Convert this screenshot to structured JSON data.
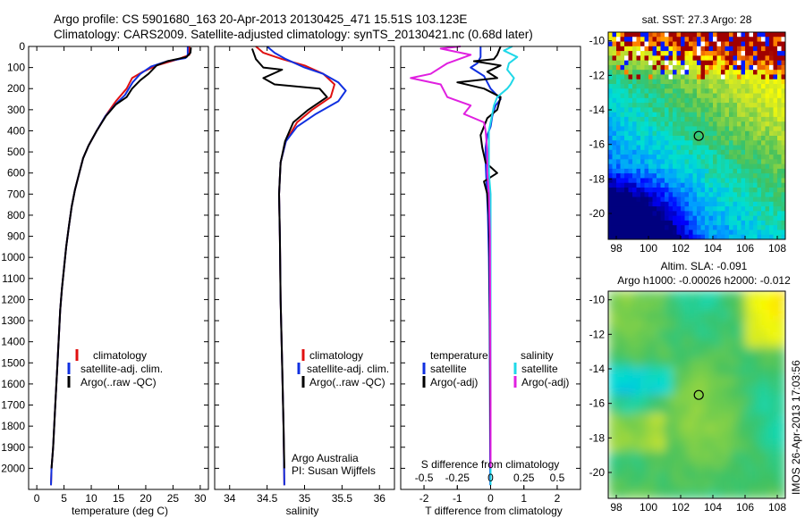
{
  "header": {
    "title_line1": "Argo profile: CS 5901680_163 20-Apr-2013 20130425_471 15.51S 103.123E",
    "title_line2": "Climatology: CARS2009. Satellite-adjusted climatology: synTS_20130421.nc (0.68d later)"
  },
  "colors": {
    "red": "#e01010",
    "blue": "#1030e0",
    "black": "#000000",
    "cyan": "#20d8e8",
    "magenta": "#e020e0"
  },
  "chart_data": [
    {
      "id": "temperature",
      "type": "line",
      "xlabel": "temperature (deg C)",
      "ylabel": "",
      "xlim": [
        -1.5,
        31.5
      ],
      "ylim": [
        2100,
        0
      ],
      "xticks": [
        0,
        5,
        10,
        15,
        20,
        25,
        30
      ],
      "yticks": [
        0,
        100,
        200,
        300,
        400,
        500,
        600,
        700,
        800,
        900,
        1000,
        1100,
        1200,
        1300,
        1400,
        1500,
        1600,
        1700,
        1800,
        1900,
        2000
      ],
      "legend": {
        "position": "lower-center",
        "entries": [
          "climatology",
          "satellite-adj. clim.",
          "Argo(..raw -QC)"
        ]
      },
      "series": [
        {
          "name": "climatology",
          "color": "red",
          "points": [
            [
              28,
              0
            ],
            [
              28,
              40
            ],
            [
              26,
              60
            ],
            [
              22,
              90
            ],
            [
              19.5,
              120
            ],
            [
              17.5,
              150
            ],
            [
              16.5,
              200
            ],
            [
              14.5,
              260
            ],
            [
              12.6,
              330
            ],
            [
              11,
              400
            ],
            [
              9.5,
              470
            ],
            [
              8.5,
              530
            ],
            [
              7.8,
              600
            ],
            [
              7,
              680
            ],
            [
              6.4,
              760
            ],
            [
              5.9,
              850
            ],
            [
              5.4,
              950
            ],
            [
              5,
              1050
            ],
            [
              4.6,
              1150
            ],
            [
              4.3,
              1250
            ],
            [
              4.1,
              1350
            ],
            [
              3.8,
              1500
            ],
            [
              3.4,
              1700
            ],
            [
              3,
              1900
            ],
            [
              2.7,
              2000
            ],
            [
              2.6,
              2080
            ]
          ]
        },
        {
          "name": "satellite-adj. clim.",
          "color": "blue",
          "points": [
            [
              27.7,
              0
            ],
            [
              27.7,
              40
            ],
            [
              27.3,
              55
            ],
            [
              24,
              70
            ],
            [
              21,
              95
            ],
            [
              19,
              130
            ],
            [
              17.6,
              170
            ],
            [
              16.2,
              230
            ],
            [
              14.6,
              270
            ],
            [
              12.6,
              330
            ],
            [
              11,
              400
            ],
            [
              9.5,
              470
            ],
            [
              8.5,
              530
            ],
            [
              7.8,
              600
            ],
            [
              7,
              680
            ],
            [
              6.4,
              760
            ],
            [
              5.9,
              850
            ],
            [
              5.4,
              950
            ],
            [
              5,
              1050
            ],
            [
              4.6,
              1150
            ],
            [
              4.3,
              1250
            ],
            [
              4.1,
              1350
            ],
            [
              3.8,
              1500
            ],
            [
              3.4,
              1700
            ],
            [
              3,
              1900
            ],
            [
              2.7,
              2000
            ],
            [
              2.6,
              2080
            ]
          ]
        },
        {
          "name": "Argo(..raw -QC)",
          "color": "black",
          "points": [
            [
              28.3,
              5
            ],
            [
              28.2,
              30
            ],
            [
              27.5,
              50
            ],
            [
              24,
              70
            ],
            [
              22,
              90
            ],
            [
              20.5,
              130
            ],
            [
              19,
              160
            ],
            [
              17.5,
              200
            ],
            [
              16.5,
              240
            ],
            [
              14.5,
              275
            ],
            [
              12.7,
              330
            ],
            [
              11,
              400
            ],
            [
              9.5,
              470
            ],
            [
              8.5,
              530
            ],
            [
              7.8,
              600
            ],
            [
              7,
              680
            ],
            [
              6.4,
              760
            ],
            [
              5.9,
              850
            ],
            [
              5.4,
              950
            ],
            [
              5,
              1050
            ],
            [
              4.6,
              1150
            ],
            [
              4.3,
              1250
            ],
            [
              4.1,
              1350
            ],
            [
              3.8,
              1500
            ],
            [
              3.4,
              1700
            ],
            [
              3,
              1900
            ],
            [
              2.7,
              2000
            ]
          ]
        }
      ]
    },
    {
      "id": "salinity",
      "type": "line",
      "xlabel": "salinity",
      "xlim": [
        33.8,
        36.2
      ],
      "ylim": [
        2100,
        0
      ],
      "xticks": [
        34,
        34.5,
        35,
        35.5,
        36
      ],
      "legend": {
        "position": "lower-center",
        "entries": [
          "climatology",
          "satellite-adj. clim.",
          "Argo(..raw -QC)"
        ]
      },
      "annotations": [
        "Argo Australia",
        "PI: Susan Wijffels"
      ],
      "series": [
        {
          "name": "climatology",
          "color": "red",
          "points": [
            [
              34.35,
              0
            ],
            [
              34.45,
              30
            ],
            [
              34.7,
              60
            ],
            [
              35,
              90
            ],
            [
              35.25,
              130
            ],
            [
              35.4,
              180
            ],
            [
              35.35,
              240
            ],
            [
              35.1,
              300
            ],
            [
              34.9,
              360
            ],
            [
              34.75,
              450
            ],
            [
              34.68,
              550
            ],
            [
              34.66,
              700
            ],
            [
              34.67,
              900
            ],
            [
              34.68,
              1200
            ],
            [
              34.7,
              1500
            ],
            [
              34.72,
              1800
            ],
            [
              34.73,
              2080
            ]
          ]
        },
        {
          "name": "satellite-adj. clim.",
          "color": "blue",
          "points": [
            [
              34.5,
              0
            ],
            [
              34.6,
              30
            ],
            [
              34.75,
              60
            ],
            [
              35,
              100
            ],
            [
              35.25,
              130
            ],
            [
              35.45,
              170
            ],
            [
              35.55,
              210
            ],
            [
              35.45,
              260
            ],
            [
              35.15,
              320
            ],
            [
              34.9,
              380
            ],
            [
              34.75,
              450
            ],
            [
              34.68,
              550
            ],
            [
              34.66,
              700
            ],
            [
              34.67,
              900
            ],
            [
              34.68,
              1200
            ],
            [
              34.7,
              1500
            ],
            [
              34.72,
              1800
            ],
            [
              34.73,
              2080
            ]
          ]
        },
        {
          "name": "Argo(..raw -QC)",
          "color": "black",
          "points": [
            [
              34.3,
              10
            ],
            [
              34.35,
              60
            ],
            [
              34.45,
              100
            ],
            [
              34.7,
              110
            ],
            [
              34.45,
              150
            ],
            [
              34.6,
              180
            ],
            [
              35.2,
              200
            ],
            [
              35.3,
              240
            ],
            [
              35.05,
              300
            ],
            [
              34.85,
              360
            ],
            [
              34.74,
              450
            ],
            [
              34.68,
              550
            ],
            [
              34.66,
              700
            ],
            [
              34.67,
              900
            ],
            [
              34.68,
              1200
            ],
            [
              34.7,
              1500
            ],
            [
              34.72,
              1800
            ],
            [
              34.73,
              2000
            ]
          ]
        }
      ]
    },
    {
      "id": "difference",
      "type": "line",
      "xlabel": "T difference from climatology",
      "top_axis_label": "S difference from climatology",
      "xlim": [
        -2.7,
        2.7
      ],
      "ylim": [
        2100,
        0
      ],
      "xticks": [
        -2,
        -1,
        0,
        1,
        2
      ],
      "sticks_values": [
        -0.5,
        -0.25,
        0,
        0.25,
        0.5
      ],
      "sticks_labels": [
        "-0.5",
        "-0.25",
        "0",
        "0.25",
        "0.5"
      ],
      "legend": {
        "position": "lower-center",
        "entries": [
          "temperature",
          "satellite",
          "Argo(-adj)",
          "salinity",
          "satellite",
          "Argo(-adj)"
        ]
      },
      "series": [
        {
          "name": "temperature satellite",
          "color": "blue",
          "points": [
            [
              -0.3,
              0
            ],
            [
              -0.3,
              50
            ],
            [
              -0.4,
              80
            ],
            [
              -0.6,
              100
            ],
            [
              -0.2,
              140
            ],
            [
              0,
              200
            ],
            [
              0.3,
              250
            ],
            [
              0.15,
              280
            ],
            [
              0.05,
              330
            ],
            [
              0,
              380
            ],
            [
              -0.1,
              420
            ],
            [
              -0.15,
              480
            ],
            [
              -0.15,
              550
            ],
            [
              -0.12,
              650
            ],
            [
              -0.08,
              800
            ],
            [
              -0.05,
              1000
            ],
            [
              -0.03,
              1300
            ],
            [
              -0.02,
              1700
            ],
            [
              -0.01,
              2080
            ]
          ]
        },
        {
          "name": "temperature Argo(-adj)",
          "color": "black",
          "points": [
            [
              0.3,
              0
            ],
            [
              0.2,
              40
            ],
            [
              0.1,
              60
            ],
            [
              -0.5,
              70
            ],
            [
              0.3,
              90
            ],
            [
              -0.1,
              120
            ],
            [
              0.2,
              150
            ],
            [
              -1.0,
              170
            ],
            [
              -0.2,
              200
            ],
            [
              0.3,
              240
            ],
            [
              0.2,
              300
            ],
            [
              -0.1,
              340
            ],
            [
              -0.2,
              380
            ],
            [
              -0.3,
              420
            ],
            [
              -0.25,
              480
            ],
            [
              -0.15,
              550
            ],
            [
              0.2,
              600
            ],
            [
              -0.2,
              640
            ],
            [
              -0.1,
              700
            ],
            [
              -0.05,
              800
            ],
            [
              -0.03,
              1000
            ],
            [
              -0.02,
              1300
            ],
            [
              -0.01,
              1700
            ],
            [
              0,
              2000
            ]
          ]
        },
        {
          "name": "salinity satellite",
          "color": "cyan",
          "points": [
            [
              0.65,
              0
            ],
            [
              0.4,
              20
            ],
            [
              0.8,
              50
            ],
            [
              0.55,
              80
            ],
            [
              0.5,
              110
            ],
            [
              0.7,
              150
            ],
            [
              0.6,
              180
            ],
            [
              0.5,
              200
            ],
            [
              0.2,
              240
            ],
            [
              0.1,
              280
            ],
            [
              0.05,
              320
            ],
            [
              0,
              360
            ],
            [
              -0.05,
              400
            ],
            [
              -0.05,
              500
            ],
            [
              -0.05,
              600
            ],
            [
              0,
              700
            ],
            [
              0,
              900
            ],
            [
              0,
              1300
            ],
            [
              0,
              1700
            ],
            [
              0,
              2080
            ]
          ]
        },
        {
          "name": "salinity Argo(-adj)",
          "color": "magenta",
          "points": [
            [
              -0.9,
              0
            ],
            [
              -1.5,
              10
            ],
            [
              -0.6,
              40
            ],
            [
              -1.3,
              80
            ],
            [
              -1.8,
              130
            ],
            [
              -2.4,
              150
            ],
            [
              -1.5,
              180
            ],
            [
              -1.3,
              240
            ],
            [
              -0.6,
              280
            ],
            [
              -0.8,
              320
            ],
            [
              -0.2,
              360
            ],
            [
              -0.15,
              400
            ],
            [
              -0.1,
              500
            ],
            [
              -0.1,
              600
            ],
            [
              -0.05,
              700
            ],
            [
              -0.02,
              900
            ],
            [
              -0.01,
              1300
            ],
            [
              0,
              1700
            ],
            [
              0,
              2000
            ]
          ]
        }
      ]
    },
    {
      "id": "sst_map",
      "type": "heatmap",
      "title": "sat. SST: 27.3 Argo: 28",
      "xlim": [
        97.5,
        108.5
      ],
      "ylim": [
        -21.5,
        -9.5
      ],
      "xticks": [
        98,
        100,
        102,
        104,
        106,
        108
      ],
      "yticks": [
        -10,
        -12,
        -14,
        -16,
        -18,
        -20
      ],
      "marker": {
        "lon": 103.123,
        "lat": -15.51
      }
    },
    {
      "id": "sla_map",
      "type": "heatmap",
      "title_line1": "Altim. SLA: -0.091",
      "title_line2": "Argo h1000: -0.00026 h2000: -0.012",
      "xlim": [
        97.5,
        108.5
      ],
      "ylim": [
        -21.5,
        -9.5
      ],
      "xticks": [
        98,
        100,
        102,
        104,
        106,
        108
      ],
      "yticks": [
        -10,
        -12,
        -14,
        -16,
        -18,
        -20
      ],
      "marker": {
        "lon": 103.123,
        "lat": -15.51
      }
    }
  ],
  "side_label": "IMOS 26-Apr-2013 17:03:56"
}
